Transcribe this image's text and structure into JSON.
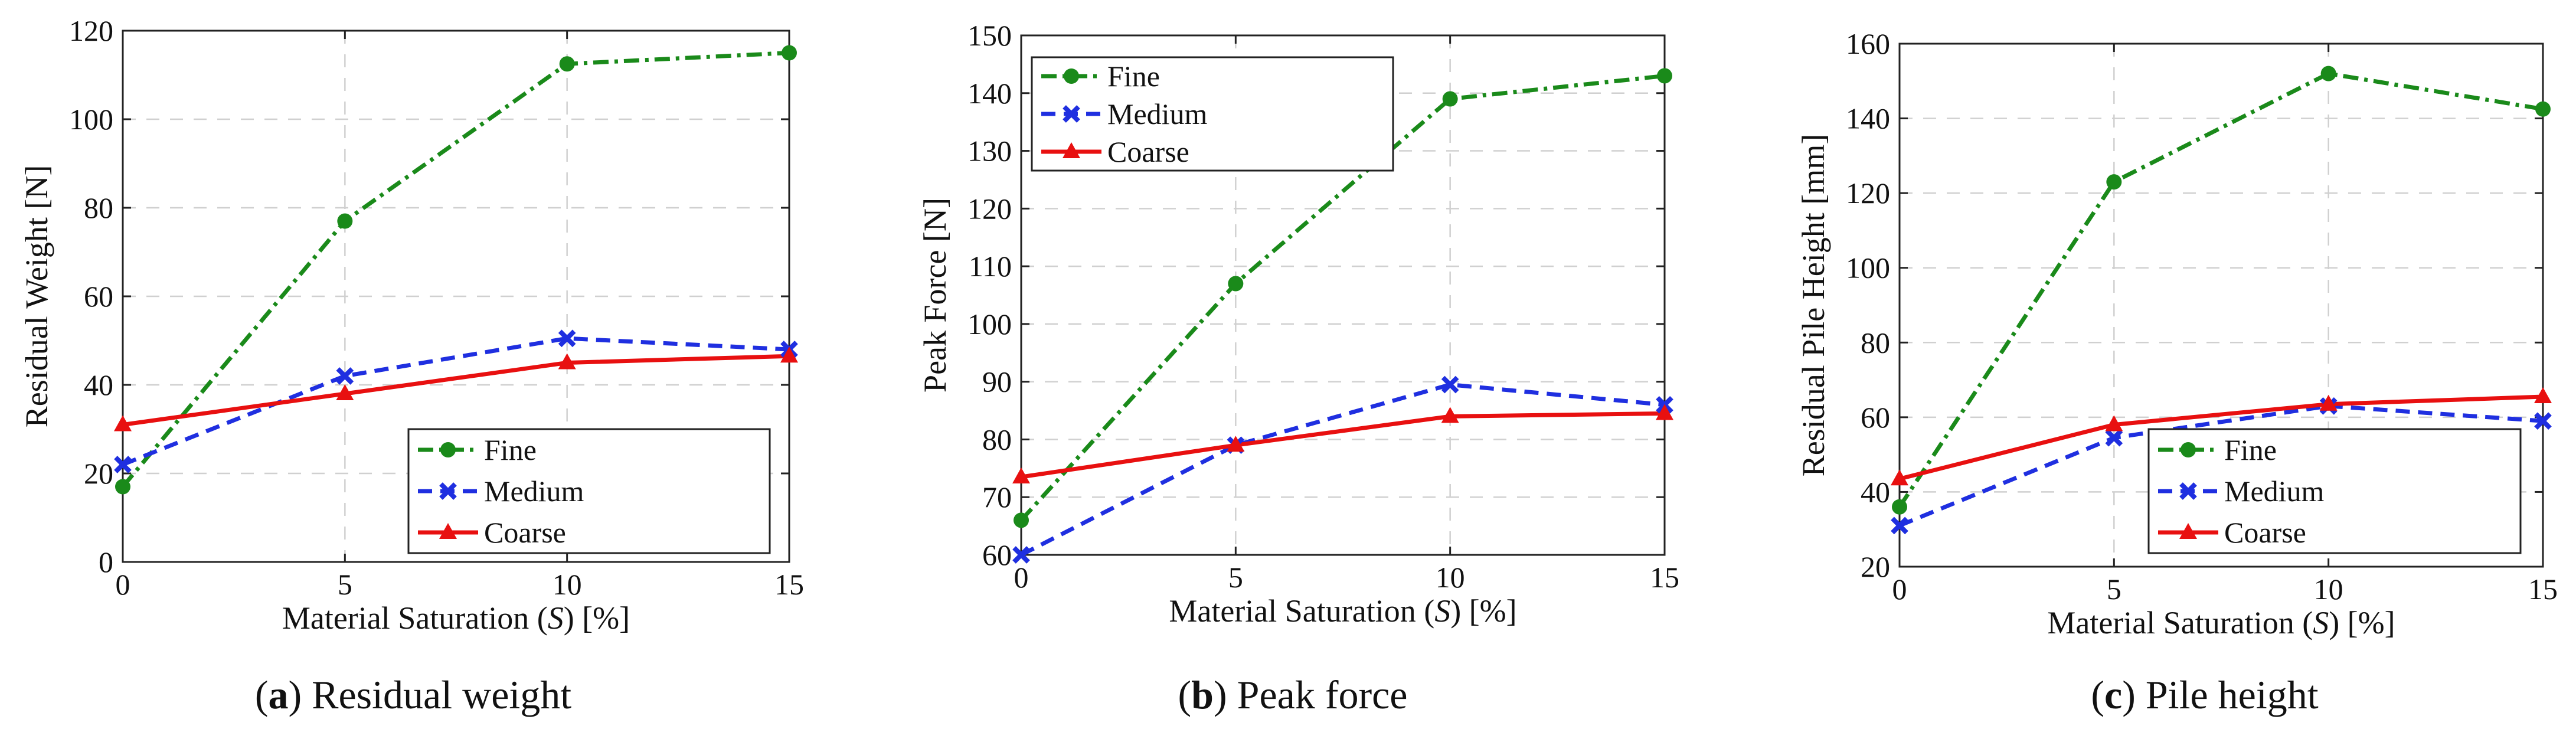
{
  "colors": {
    "fine": "#1a8a1a",
    "medium": "#1f2fe0",
    "coarse": "#e81010"
  },
  "icons": {
    "fine": "circle-marker-icon",
    "medium": "x-marker-icon",
    "coarse": "triangle-marker-icon"
  },
  "chart_data": [
    {
      "type": "line",
      "caption_letter": "a",
      "caption_text": "Residual weight",
      "xlabel_prefix": "Material Saturation (",
      "xlabel_var": "S",
      "xlabel_suffix": ") [%]",
      "ylabel": "Residual Weight [N]",
      "xlim": [
        0,
        15
      ],
      "ylim": [
        0,
        120
      ],
      "xticks": [
        0,
        5,
        10,
        15
      ],
      "yticks": [
        0,
        20,
        40,
        60,
        80,
        100,
        120
      ],
      "legend_position": "lower-right",
      "x": [
        0,
        5,
        10,
        15
      ],
      "series": [
        {
          "name": "Fine",
          "key": "fine",
          "values": [
            17,
            77,
            112.5,
            115
          ]
        },
        {
          "name": "Medium",
          "key": "medium",
          "values": [
            22,
            42,
            50.5,
            48
          ]
        },
        {
          "name": "Coarse",
          "key": "coarse",
          "values": [
            31,
            38,
            45,
            46.5
          ]
        }
      ]
    },
    {
      "type": "line",
      "caption_letter": "b",
      "caption_text": "Peak force",
      "xlabel_prefix": "Material Saturation (",
      "xlabel_var": "S",
      "xlabel_suffix": ") [%]",
      "ylabel": "Peak Force [N]",
      "xlim": [
        0,
        15
      ],
      "ylim": [
        60,
        150
      ],
      "xticks": [
        0,
        5,
        10,
        15
      ],
      "yticks": [
        60,
        70,
        80,
        90,
        100,
        110,
        120,
        130,
        140,
        150
      ],
      "legend_position": "upper-left",
      "x": [
        0,
        5,
        10,
        15
      ],
      "series": [
        {
          "name": "Fine",
          "key": "fine",
          "values": [
            66,
            107,
            139,
            143
          ]
        },
        {
          "name": "Medium",
          "key": "medium",
          "values": [
            60,
            79,
            89.5,
            86
          ]
        },
        {
          "name": "Coarse",
          "key": "coarse",
          "values": [
            73.5,
            79,
            84,
            84.5
          ]
        }
      ]
    },
    {
      "type": "line",
      "caption_letter": "c",
      "caption_text": "Pile height",
      "xlabel_prefix": "Material Saturation (",
      "xlabel_var": "S",
      "xlabel_suffix": ") [%]",
      "ylabel": "Residual Pile Height [mm]",
      "xlim": [
        0,
        15
      ],
      "ylim": [
        20,
        160
      ],
      "xticks": [
        0,
        5,
        10,
        15
      ],
      "yticks": [
        20,
        40,
        60,
        80,
        100,
        120,
        140,
        160
      ],
      "legend_position": "lower-right",
      "x": [
        0,
        5,
        10,
        15
      ],
      "series": [
        {
          "name": "Fine",
          "key": "fine",
          "values": [
            36,
            123,
            152,
            142.5
          ]
        },
        {
          "name": "Medium",
          "key": "medium",
          "values": [
            31,
            54.5,
            63,
            59
          ]
        },
        {
          "name": "Coarse",
          "key": "coarse",
          "values": [
            43.5,
            58,
            63.5,
            65.5
          ]
        }
      ]
    }
  ]
}
